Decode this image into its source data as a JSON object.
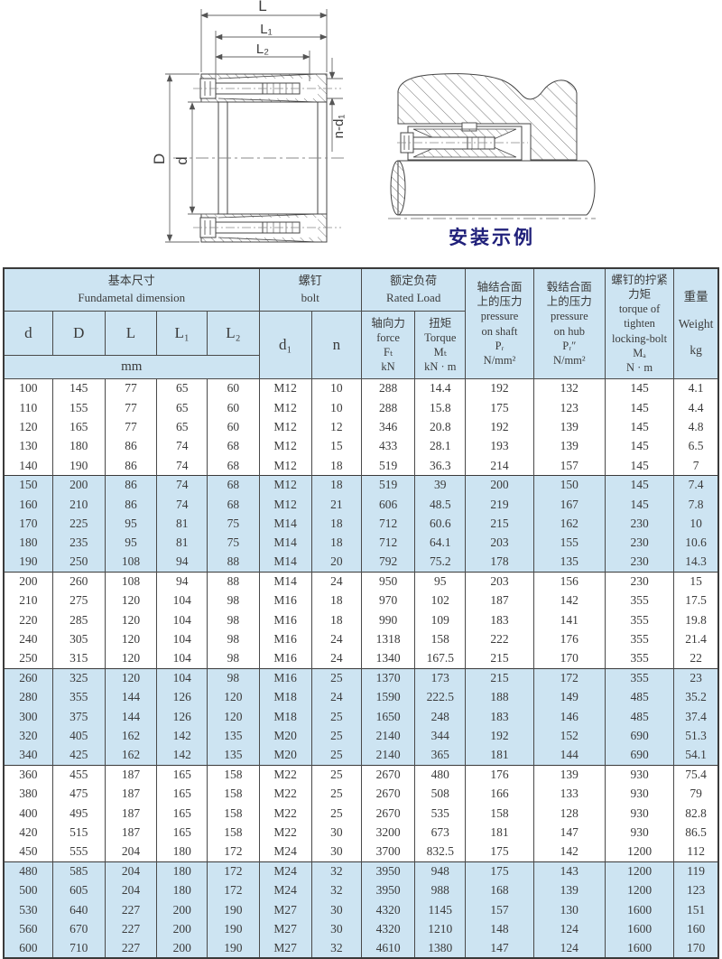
{
  "colors": {
    "band_blue": "#cde4f2",
    "ink": "#3b3b3b",
    "caption_navy": "#20207a",
    "line": "#4a4a4a"
  },
  "diagram": {
    "dim_L": "L",
    "dim_L1": "L₁",
    "dim_L2": "L₂",
    "dim_nd1": "n-d₁",
    "dim_D": "D",
    "dim_d": "d",
    "caption": "安装示例"
  },
  "table": {
    "header": {
      "basic_dim": "基本尺寸\nFundametal  dimension",
      "bolt": "螺钉\nbolt",
      "rated_load": "额定负荷\nRated  Load",
      "col_d": "d",
      "col_D": "D",
      "col_L": "L",
      "col_L1": "L₁",
      "col_L2": "L₂",
      "unit_mm": "mm",
      "col_d1": "d₁",
      "col_n": "n",
      "force": "轴向力\nforce\nFₜ\nkN",
      "torque": "扭矩\nTorque\nMₜ\nkN · m",
      "pressure_shaft": "轴结合面\n上的压力\npressure\non  shaft\nPᵣ\nN/mm²",
      "pressure_hub": "毂结合面\n上的压力\npressure\non hub\nPᵣ″\nN/mm²",
      "tighten_torque": "螺钉的拧紧\n力矩\ntorque of\ntighten\nlocking-bolt\nMₐ\nN · m",
      "weight": "重量\nWeight\nkg"
    },
    "rows": [
      [
        100,
        145,
        77,
        65,
        60,
        "M12",
        10,
        288,
        14.4,
        192,
        132,
        145,
        4.1
      ],
      [
        110,
        155,
        77,
        65,
        60,
        "M12",
        10,
        288,
        15.8,
        175,
        123,
        145,
        4.4
      ],
      [
        120,
        165,
        77,
        65,
        60,
        "M12",
        12,
        346,
        20.8,
        192,
        139,
        145,
        4.8
      ],
      [
        130,
        180,
        86,
        74,
        68,
        "M12",
        15,
        433,
        28.1,
        193,
        139,
        145,
        6.5
      ],
      [
        140,
        190,
        86,
        74,
        68,
        "M12",
        18,
        519,
        36.3,
        214,
        157,
        145,
        7
      ],
      [
        150,
        200,
        86,
        74,
        68,
        "M12",
        18,
        519,
        39,
        200,
        150,
        145,
        7.4
      ],
      [
        160,
        210,
        86,
        74,
        68,
        "M12",
        21,
        606,
        48.5,
        219,
        167,
        145,
        7.8
      ],
      [
        170,
        225,
        95,
        81,
        75,
        "M14",
        18,
        712,
        60.6,
        215,
        162,
        230,
        10
      ],
      [
        180,
        235,
        95,
        81,
        75,
        "M14",
        18,
        712,
        64.1,
        203,
        155,
        230,
        10.6
      ],
      [
        190,
        250,
        108,
        94,
        88,
        "M14",
        20,
        792,
        75.2,
        178,
        135,
        230,
        14.3
      ],
      [
        200,
        260,
        108,
        94,
        88,
        "M14",
        24,
        950,
        95,
        203,
        156,
        230,
        15
      ],
      [
        210,
        275,
        120,
        104,
        98,
        "M16",
        18,
        970,
        102,
        187,
        142,
        355,
        17.5
      ],
      [
        220,
        285,
        120,
        104,
        98,
        "M16",
        18,
        990,
        109,
        183,
        141,
        355,
        19.8
      ],
      [
        240,
        305,
        120,
        104,
        98,
        "M16",
        24,
        1318,
        158,
        222,
        176,
        355,
        21.4
      ],
      [
        250,
        315,
        120,
        104,
        98,
        "M16",
        24,
        1340,
        167.5,
        215,
        170,
        355,
        22
      ],
      [
        260,
        325,
        120,
        104,
        98,
        "M16",
        25,
        1370,
        173,
        215,
        172,
        355,
        23
      ],
      [
        280,
        355,
        144,
        126,
        120,
        "M18",
        24,
        1590,
        222.5,
        188,
        149,
        485,
        35.2
      ],
      [
        300,
        375,
        144,
        126,
        120,
        "M18",
        25,
        1650,
        248,
        183,
        146,
        485,
        37.4
      ],
      [
        320,
        405,
        162,
        142,
        135,
        "M20",
        25,
        2140,
        344,
        192,
        152,
        690,
        51.3
      ],
      [
        340,
        425,
        162,
        142,
        135,
        "M20",
        25,
        2140,
        365,
        181,
        144,
        690,
        54.1
      ],
      [
        360,
        455,
        187,
        165,
        158,
        "M22",
        25,
        2670,
        480,
        176,
        139,
        930,
        75.4
      ],
      [
        380,
        475,
        187,
        165,
        158,
        "M22",
        25,
        2670,
        508,
        166,
        133,
        930,
        79
      ],
      [
        400,
        495,
        187,
        165,
        158,
        "M22",
        25,
        2670,
        535,
        158,
        128,
        930,
        82.8
      ],
      [
        420,
        515,
        187,
        165,
        158,
        "M22",
        30,
        3200,
        673,
        181,
        147,
        930,
        86.5
      ],
      [
        450,
        555,
        204,
        180,
        172,
        "M24",
        30,
        3700,
        832.5,
        175,
        142,
        1200,
        112
      ],
      [
        480,
        585,
        204,
        180,
        172,
        "M24",
        32,
        3950,
        948,
        175,
        143,
        1200,
        119
      ],
      [
        500,
        605,
        204,
        180,
        172,
        "M24",
        32,
        3950,
        988,
        168,
        139,
        1200,
        123
      ],
      [
        530,
        640,
        227,
        200,
        190,
        "M27",
        30,
        4320,
        1145,
        157,
        130,
        1600,
        151
      ],
      [
        560,
        670,
        227,
        200,
        190,
        "M27",
        30,
        4320,
        1210,
        148,
        124,
        1600,
        160
      ],
      [
        600,
        710,
        227,
        200,
        190,
        "M27",
        32,
        4610,
        1380,
        147,
        124,
        1600,
        170
      ]
    ]
  }
}
